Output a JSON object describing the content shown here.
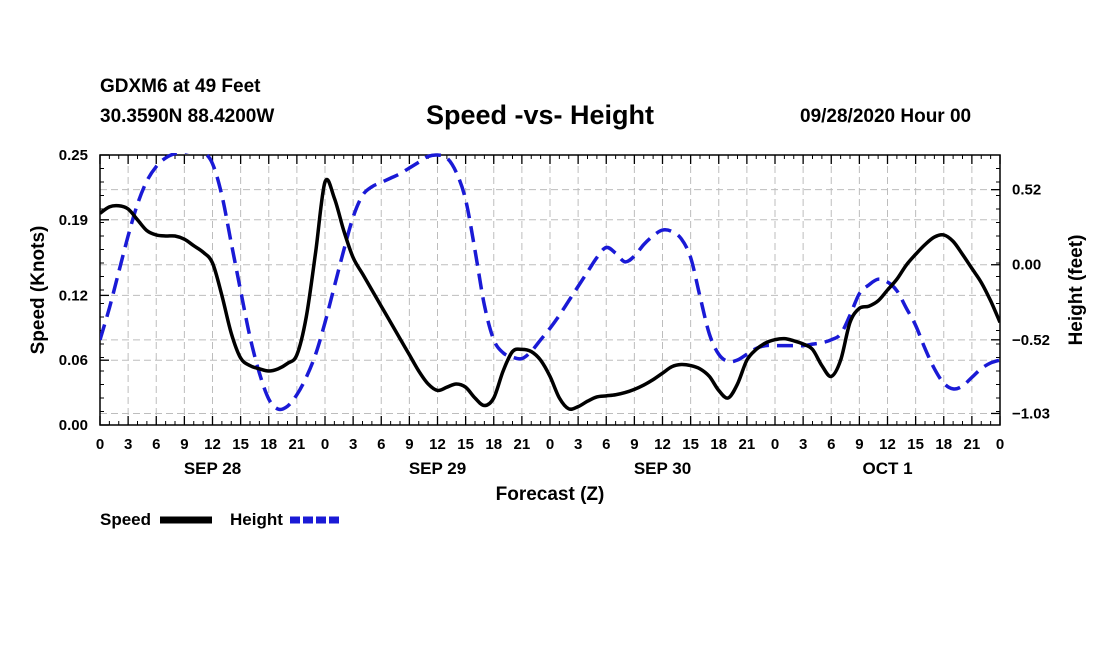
{
  "header": {
    "station": "GDXM6 at 49 Feet",
    "coords": "30.3590N 88.4200W",
    "datetime": "09/28/2020 Hour 00"
  },
  "chart_data": {
    "type": "line",
    "title": "Speed -vs- Height",
    "xlabel": "Forecast (Z)",
    "ylabel": "Speed (Knots)",
    "y2label": "Height (feet)",
    "x_unit": "hours from 09/28/2020 00Z",
    "xlim": [
      0,
      96
    ],
    "ylim": [
      0,
      0.25
    ],
    "y2lim": [
      -1.11,
      0.76
    ],
    "x_ticks": [
      0,
      3,
      6,
      9,
      12,
      15,
      18,
      21,
      24,
      27,
      30,
      33,
      36,
      39,
      42,
      45,
      48,
      51,
      54,
      57,
      60,
      63,
      66,
      69,
      72,
      75,
      78,
      81,
      84,
      87,
      90,
      93,
      96
    ],
    "x_tick_labels": [
      "0",
      "3",
      "6",
      "9",
      "12",
      "15",
      "18",
      "21",
      "0",
      "3",
      "6",
      "9",
      "12",
      "15",
      "18",
      "21",
      "0",
      "3",
      "6",
      "9",
      "12",
      "15",
      "18",
      "21",
      "0",
      "3",
      "6",
      "9",
      "12",
      "15",
      "18",
      "21",
      "0"
    ],
    "day_labels": [
      {
        "x": 12,
        "label": "SEP 28"
      },
      {
        "x": 36,
        "label": "SEP 29"
      },
      {
        "x": 60,
        "label": "SEP 30"
      },
      {
        "x": 84,
        "label": "OCT 1"
      }
    ],
    "y_ticks": [
      0.0,
      0.06,
      0.12,
      0.19,
      0.25
    ],
    "y_tick_labels": [
      "0.00",
      "0.06",
      "0.12",
      "0.19",
      "0.25"
    ],
    "y2_ticks": [
      0.52,
      0.0,
      -0.52,
      -1.03
    ],
    "y2_tick_labels": [
      "0.52",
      "0.00",
      "−0.52",
      "−1.03"
    ],
    "grid": true,
    "legend": [
      {
        "name": "Speed",
        "color": "#000000",
        "dash": "solid"
      },
      {
        "name": "Height",
        "color": "#1a1ad6",
        "dash": "dashed"
      }
    ],
    "series": [
      {
        "name": "Speed",
        "axis": "left",
        "color": "#000000",
        "x": [
          0,
          1,
          2,
          3,
          4,
          5,
          6,
          7,
          8,
          9,
          10,
          11,
          12,
          13,
          14,
          15,
          16,
          17,
          18,
          19,
          20,
          21,
          22,
          23,
          24,
          25,
          26,
          27,
          28,
          29,
          30,
          31,
          32,
          33,
          34,
          35,
          36,
          37,
          38,
          39,
          40,
          41,
          42,
          43,
          44,
          45,
          46,
          47,
          48,
          49,
          50,
          51,
          52,
          53,
          54,
          55,
          56,
          57,
          58,
          59,
          60,
          61,
          62,
          63,
          64,
          65,
          66,
          67,
          68,
          69,
          70,
          71,
          72,
          73,
          74,
          75,
          76,
          77,
          78,
          79,
          80,
          81,
          82,
          83,
          84,
          85,
          86,
          87,
          88,
          89,
          90,
          91,
          92,
          93,
          94,
          95,
          96
        ],
        "values": [
          0.196,
          0.202,
          0.203,
          0.2,
          0.19,
          0.18,
          0.176,
          0.175,
          0.175,
          0.172,
          0.166,
          0.16,
          0.15,
          0.12,
          0.085,
          0.062,
          0.055,
          0.052,
          0.05,
          0.052,
          0.057,
          0.065,
          0.1,
          0.16,
          0.225,
          0.21,
          0.18,
          0.155,
          0.14,
          0.125,
          0.11,
          0.095,
          0.08,
          0.065,
          0.05,
          0.038,
          0.032,
          0.035,
          0.038,
          0.035,
          0.025,
          0.018,
          0.025,
          0.05,
          0.068,
          0.07,
          0.068,
          0.06,
          0.045,
          0.025,
          0.015,
          0.017,
          0.022,
          0.026,
          0.027,
          0.028,
          0.03,
          0.033,
          0.037,
          0.042,
          0.048,
          0.054,
          0.056,
          0.055,
          0.052,
          0.045,
          0.032,
          0.025,
          0.038,
          0.06,
          0.07,
          0.076,
          0.079,
          0.08,
          0.078,
          0.075,
          0.07,
          0.055,
          0.045,
          0.06,
          0.095,
          0.108,
          0.11,
          0.115,
          0.125,
          0.135,
          0.148,
          0.158,
          0.167,
          0.174,
          0.176,
          0.17,
          0.158,
          0.145,
          0.132,
          0.115,
          0.095
        ]
      },
      {
        "name": "Height",
        "axis": "right",
        "color": "#1a1ad6",
        "x": [
          0,
          1,
          2,
          3,
          4,
          5,
          6,
          7,
          8,
          9,
          10,
          11,
          12,
          13,
          14,
          15,
          16,
          17,
          18,
          19,
          20,
          21,
          22,
          23,
          24,
          25,
          26,
          27,
          28,
          29,
          30,
          31,
          32,
          33,
          34,
          35,
          36,
          37,
          38,
          39,
          40,
          41,
          42,
          43,
          44,
          45,
          46,
          47,
          48,
          49,
          50,
          51,
          52,
          53,
          54,
          55,
          56,
          57,
          58,
          59,
          60,
          61,
          62,
          63,
          64,
          65,
          66,
          67,
          68,
          69,
          70,
          71,
          72,
          73,
          74,
          75,
          76,
          77,
          78,
          79,
          80,
          81,
          82,
          83,
          84,
          85,
          86,
          87,
          88,
          89,
          90,
          91,
          92,
          93,
          94,
          95,
          96
        ],
        "values": [
          -0.52,
          -0.3,
          -0.05,
          0.2,
          0.42,
          0.58,
          0.68,
          0.74,
          0.77,
          0.78,
          0.79,
          0.78,
          0.7,
          0.48,
          0.15,
          -0.18,
          -0.5,
          -0.75,
          -0.93,
          -1.0,
          -0.98,
          -0.9,
          -0.78,
          -0.62,
          -0.4,
          -0.15,
          0.1,
          0.33,
          0.48,
          0.54,
          0.57,
          0.6,
          0.63,
          0.67,
          0.71,
          0.75,
          0.76,
          0.74,
          0.64,
          0.45,
          0.1,
          -0.28,
          -0.52,
          -0.61,
          -0.64,
          -0.65,
          -0.6,
          -0.52,
          -0.44,
          -0.35,
          -0.25,
          -0.15,
          -0.05,
          0.05,
          0.12,
          0.08,
          0.02,
          0.06,
          0.14,
          0.2,
          0.24,
          0.23,
          0.18,
          0.05,
          -0.22,
          -0.48,
          -0.62,
          -0.67,
          -0.66,
          -0.62,
          -0.58,
          -0.56,
          -0.56,
          -0.56,
          -0.56,
          -0.56,
          -0.55,
          -0.54,
          -0.52,
          -0.48,
          -0.35,
          -0.2,
          -0.14,
          -0.1,
          -0.12,
          -0.18,
          -0.3,
          -0.42,
          -0.58,
          -0.72,
          -0.82,
          -0.86,
          -0.84,
          -0.78,
          -0.72,
          -0.68,
          -0.66
        ]
      }
    ]
  }
}
